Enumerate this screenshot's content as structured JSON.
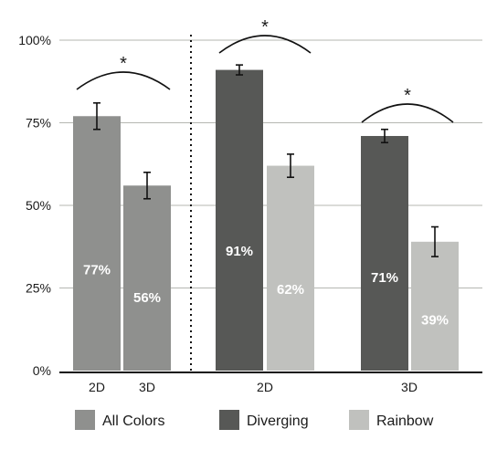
{
  "chart_data": {
    "type": "bar",
    "ylim": [
      0,
      100
    ],
    "y_ticks": [
      {
        "value": 0,
        "label": "0%"
      },
      {
        "value": 25,
        "label": "25%"
      },
      {
        "value": 50,
        "label": "50%"
      },
      {
        "value": 75,
        "label": "75%"
      },
      {
        "value": 100,
        "label": "100%"
      }
    ],
    "grid": true,
    "colors": {
      "All Colors": "#8f908e",
      "Diverging": "#575856",
      "Rainbow": "#c0c1be"
    },
    "bars": [
      {
        "group": "left",
        "category": "2D",
        "series": "All Colors",
        "value": 77,
        "label": "77%",
        "err": 4
      },
      {
        "group": "left",
        "category": "3D",
        "series": "All Colors",
        "value": 56,
        "label": "56%",
        "err": 4
      },
      {
        "group": "2D",
        "category": "2D",
        "series": "Diverging",
        "value": 91,
        "label": "91%",
        "err": 1.5
      },
      {
        "group": "2D",
        "category": "2D",
        "series": "Rainbow",
        "value": 62,
        "label": "62%",
        "err": 3.5
      },
      {
        "group": "3D",
        "category": "3D",
        "series": "Diverging",
        "value": 71,
        "label": "71%",
        "err": 2
      },
      {
        "group": "3D",
        "category": "3D",
        "series": "Rainbow",
        "value": 39,
        "label": "39%",
        "err": 4.5
      }
    ],
    "x_labels": [
      "2D",
      "3D",
      "2D",
      "3D"
    ],
    "legend": [
      "All Colors",
      "Diverging",
      "Rainbow"
    ],
    "legend_position": "bottom",
    "significance": [
      "*",
      "*",
      "*"
    ]
  }
}
